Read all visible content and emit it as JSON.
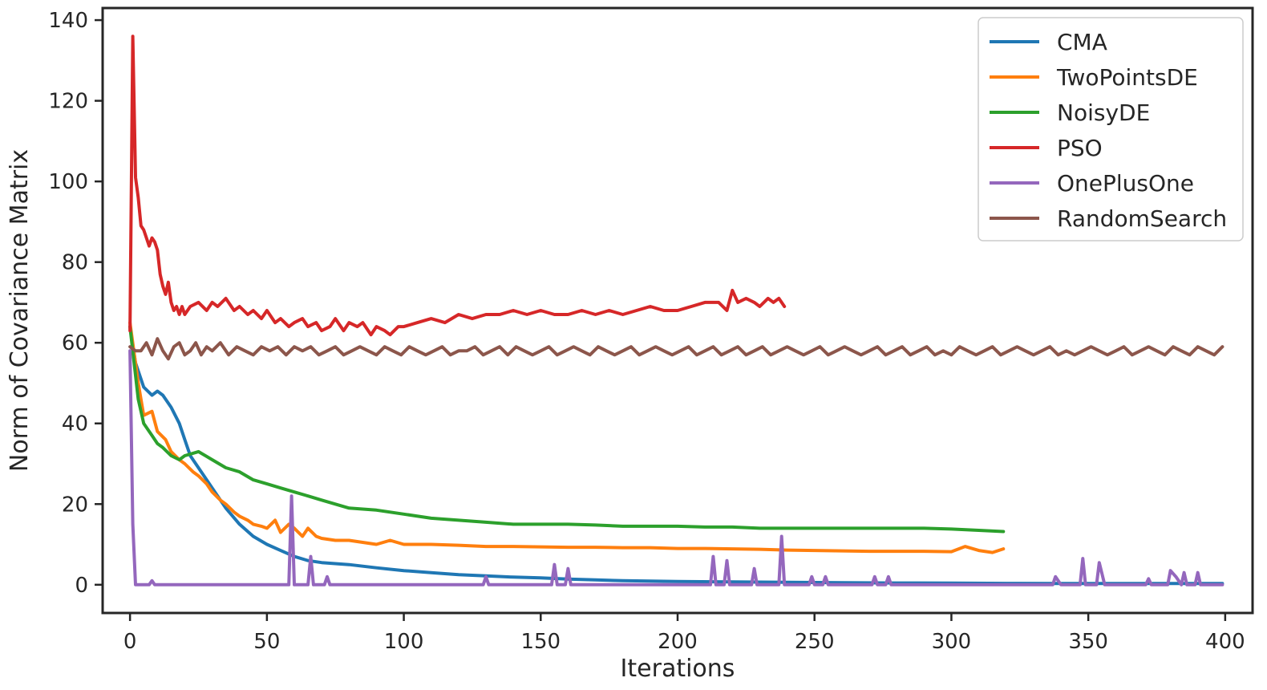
{
  "chart_data": {
    "type": "line",
    "title": "",
    "xlabel": "Iterations",
    "ylabel": "Norm of Covariance Matrix",
    "xlim": [
      -10,
      410
    ],
    "ylim": [
      -7,
      143
    ],
    "xticks": [
      0,
      50,
      100,
      150,
      200,
      250,
      300,
      350,
      400
    ],
    "yticks": [
      0,
      20,
      40,
      60,
      80,
      100,
      120,
      140
    ],
    "grid": false,
    "legend_position": "top-right",
    "series": [
      {
        "name": "CMA",
        "color": "#1f77b4",
        "x": [
          0,
          2,
          5,
          8,
          10,
          12,
          15,
          18,
          20,
          22,
          25,
          30,
          35,
          40,
          45,
          50,
          55,
          60,
          65,
          70,
          80,
          90,
          100,
          110,
          120,
          130,
          140,
          150,
          160,
          170,
          180,
          190,
          200,
          220,
          240,
          260,
          280,
          300,
          320,
          340,
          360,
          380,
          399
        ],
        "y": [
          64,
          55,
          49,
          47,
          48,
          47,
          44,
          40,
          36,
          32,
          29,
          24,
          19,
          15,
          12,
          10,
          8.5,
          7,
          6,
          5.5,
          5,
          4.2,
          3.5,
          3,
          2.5,
          2.2,
          1.9,
          1.7,
          1.4,
          1.2,
          1.0,
          0.9,
          0.8,
          0.7,
          0.6,
          0.5,
          0.45,
          0.4,
          0.35,
          0.3,
          0.3,
          0.3,
          0.3
        ]
      },
      {
        "name": "TwoPointsDE",
        "color": "#ff7f0e",
        "x": [
          0,
          3,
          5,
          8,
          10,
          13,
          15,
          18,
          20,
          23,
          25,
          28,
          30,
          33,
          35,
          38,
          40,
          43,
          45,
          48,
          50,
          53,
          55,
          58,
          60,
          63,
          65,
          68,
          70,
          75,
          80,
          85,
          90,
          95,
          100,
          110,
          120,
          130,
          140,
          150,
          160,
          170,
          180,
          190,
          200,
          210,
          220,
          230,
          240,
          250,
          260,
          270,
          280,
          290,
          300,
          305,
          310,
          315,
          319
        ],
        "y": [
          65,
          50,
          42,
          43,
          38,
          36,
          33,
          31,
          30,
          28,
          27,
          25,
          23,
          21,
          20,
          18,
          17,
          16,
          15,
          14.5,
          14,
          16,
          13,
          15,
          14,
          12,
          14,
          12,
          11.5,
          11,
          11,
          10.5,
          10,
          11,
          10,
          10,
          9.8,
          9.5,
          9.5,
          9.4,
          9.3,
          9.3,
          9.2,
          9.2,
          9.0,
          9.0,
          8.9,
          8.8,
          8.6,
          8.5,
          8.4,
          8.3,
          8.3,
          8.3,
          8.2,
          9.5,
          8.5,
          8.0,
          8.9
        ]
      },
      {
        "name": "NoisyDE",
        "color": "#2ca02c",
        "x": [
          0,
          3,
          5,
          8,
          10,
          12,
          15,
          18,
          20,
          25,
          30,
          35,
          40,
          45,
          50,
          55,
          60,
          65,
          70,
          80,
          90,
          100,
          110,
          120,
          130,
          140,
          150,
          160,
          170,
          180,
          190,
          200,
          210,
          220,
          230,
          240,
          250,
          260,
          270,
          280,
          290,
          300,
          310,
          319
        ],
        "y": [
          64,
          46,
          40,
          37,
          35,
          34,
          32,
          31,
          32,
          33,
          31,
          29,
          28,
          26,
          25,
          24,
          23,
          22,
          21,
          19,
          18.5,
          17.5,
          16.5,
          16,
          15.5,
          15,
          15,
          15,
          14.8,
          14.5,
          14.5,
          14.5,
          14.3,
          14.3,
          14,
          14,
          14,
          14,
          14,
          14,
          14,
          13.8,
          13.5,
          13.2
        ]
      },
      {
        "name": "PSO",
        "color": "#d62728",
        "x": [
          0,
          1,
          2,
          3,
          4,
          5,
          6,
          7,
          8,
          9,
          10,
          11,
          12,
          13,
          14,
          15,
          16,
          17,
          18,
          19,
          20,
          22,
          25,
          28,
          30,
          32,
          35,
          38,
          40,
          43,
          45,
          48,
          50,
          53,
          55,
          58,
          60,
          63,
          65,
          68,
          70,
          73,
          75,
          78,
          80,
          83,
          85,
          88,
          90,
          93,
          95,
          98,
          100,
          105,
          110,
          115,
          120,
          125,
          130,
          135,
          140,
          145,
          150,
          155,
          160,
          165,
          170,
          175,
          180,
          185,
          190,
          195,
          200,
          205,
          210,
          215,
          218,
          220,
          222,
          225,
          228,
          230,
          233,
          235,
          237,
          239
        ],
        "y": [
          63,
          136,
          101,
          96,
          89,
          88,
          86,
          84,
          86,
          85,
          83,
          77,
          74,
          72,
          75,
          70,
          68,
          69,
          67,
          69,
          67,
          69,
          70,
          68,
          70,
          69,
          71,
          68,
          69,
          67,
          68,
          66,
          68,
          65,
          66,
          64,
          65,
          66,
          64,
          65,
          63,
          64,
          66,
          63,
          65,
          64,
          65,
          62,
          64,
          63,
          62,
          64,
          64,
          65,
          66,
          65,
          67,
          66,
          67,
          67,
          68,
          67,
          68,
          67,
          67,
          68,
          67,
          68,
          67,
          68,
          69,
          68,
          68,
          69,
          70,
          70,
          68,
          73,
          70,
          71,
          70,
          69,
          71,
          70,
          71,
          69
        ]
      },
      {
        "name": "OnePlusOne",
        "color": "#9467bd",
        "x": [
          0,
          1,
          2,
          3,
          7,
          8,
          9,
          57,
          58,
          59,
          60,
          65,
          66,
          67,
          71,
          72,
          73,
          129,
          130,
          131,
          154,
          155,
          156,
          159,
          160,
          161,
          212,
          213,
          214,
          217,
          218,
          219,
          227,
          228,
          229,
          237,
          238,
          239,
          248,
          249,
          250,
          253,
          254,
          255,
          271,
          272,
          273,
          276,
          277,
          278,
          337,
          338,
          340,
          347,
          348,
          349,
          353,
          354,
          356,
          371,
          372,
          373,
          379,
          380,
          382,
          384,
          385,
          386,
          389,
          390,
          391,
          399
        ],
        "y": [
          58,
          15,
          0,
          0,
          0,
          1,
          0,
          0,
          0,
          22,
          0,
          0,
          7,
          0,
          0,
          2,
          0,
          0,
          2,
          0,
          0,
          5,
          0,
          0,
          4,
          0,
          0,
          7,
          0,
          0,
          6,
          0,
          0,
          4,
          0,
          0,
          12,
          0,
          0,
          2,
          0,
          0,
          2,
          0,
          0,
          2,
          0,
          0,
          2,
          0,
          0,
          2,
          0,
          0,
          6.5,
          0,
          0,
          5.5,
          0,
          0,
          1.5,
          0,
          0,
          3.5,
          2,
          0,
          3,
          0,
          0,
          3,
          0,
          0
        ]
      },
      {
        "name": "RandomSearch",
        "color": "#8c564b",
        "x": [
          0,
          2,
          4,
          6,
          8,
          10,
          12,
          14,
          16,
          18,
          20,
          22,
          24,
          26,
          28,
          30,
          33,
          36,
          39,
          42,
          45,
          48,
          51,
          54,
          57,
          60,
          63,
          66,
          69,
          72,
          75,
          78,
          81,
          84,
          87,
          90,
          93,
          96,
          99,
          102,
          105,
          108,
          111,
          114,
          117,
          120,
          123,
          126,
          129,
          132,
          135,
          138,
          141,
          144,
          147,
          150,
          153,
          156,
          159,
          162,
          165,
          168,
          171,
          174,
          177,
          180,
          183,
          186,
          189,
          192,
          195,
          198,
          201,
          204,
          207,
          210,
          213,
          216,
          219,
          222,
          225,
          228,
          231,
          234,
          237,
          240,
          243,
          246,
          249,
          252,
          255,
          258,
          261,
          264,
          267,
          270,
          273,
          276,
          279,
          282,
          285,
          288,
          291,
          294,
          297,
          300,
          303,
          306,
          309,
          312,
          315,
          318,
          321,
          324,
          327,
          330,
          333,
          336,
          339,
          342,
          345,
          348,
          351,
          354,
          357,
          360,
          363,
          366,
          369,
          372,
          375,
          378,
          381,
          384,
          387,
          390,
          393,
          396,
          399
        ],
        "y": [
          59,
          58,
          58,
          60,
          57,
          61,
          58,
          56,
          59,
          60,
          57,
          58,
          60,
          57,
          59,
          58,
          60,
          57,
          59,
          58,
          57,
          59,
          58,
          59,
          57,
          59,
          58,
          59,
          57,
          58,
          59,
          57,
          58,
          59,
          58,
          57,
          59,
          58,
          57,
          59,
          58,
          57,
          58,
          59,
          57,
          58,
          58,
          59,
          57,
          58,
          59,
          57,
          59,
          58,
          57,
          58,
          59,
          57,
          58,
          59,
          58,
          57,
          59,
          58,
          57,
          58,
          59,
          57,
          58,
          59,
          58,
          57,
          58,
          59,
          57,
          58,
          59,
          57,
          58,
          59,
          57,
          58,
          59,
          57,
          58,
          59,
          58,
          57,
          58,
          59,
          57,
          58,
          59,
          58,
          57,
          58,
          59,
          57,
          58,
          59,
          57,
          58,
          59,
          57,
          58,
          57,
          59,
          58,
          57,
          58,
          59,
          57,
          58,
          59,
          58,
          57,
          58,
          59,
          57,
          58,
          57,
          58,
          59,
          58,
          57,
          58,
          59,
          57,
          58,
          59,
          58,
          57,
          59,
          58,
          57,
          59,
          58,
          57,
          59
        ]
      }
    ]
  }
}
